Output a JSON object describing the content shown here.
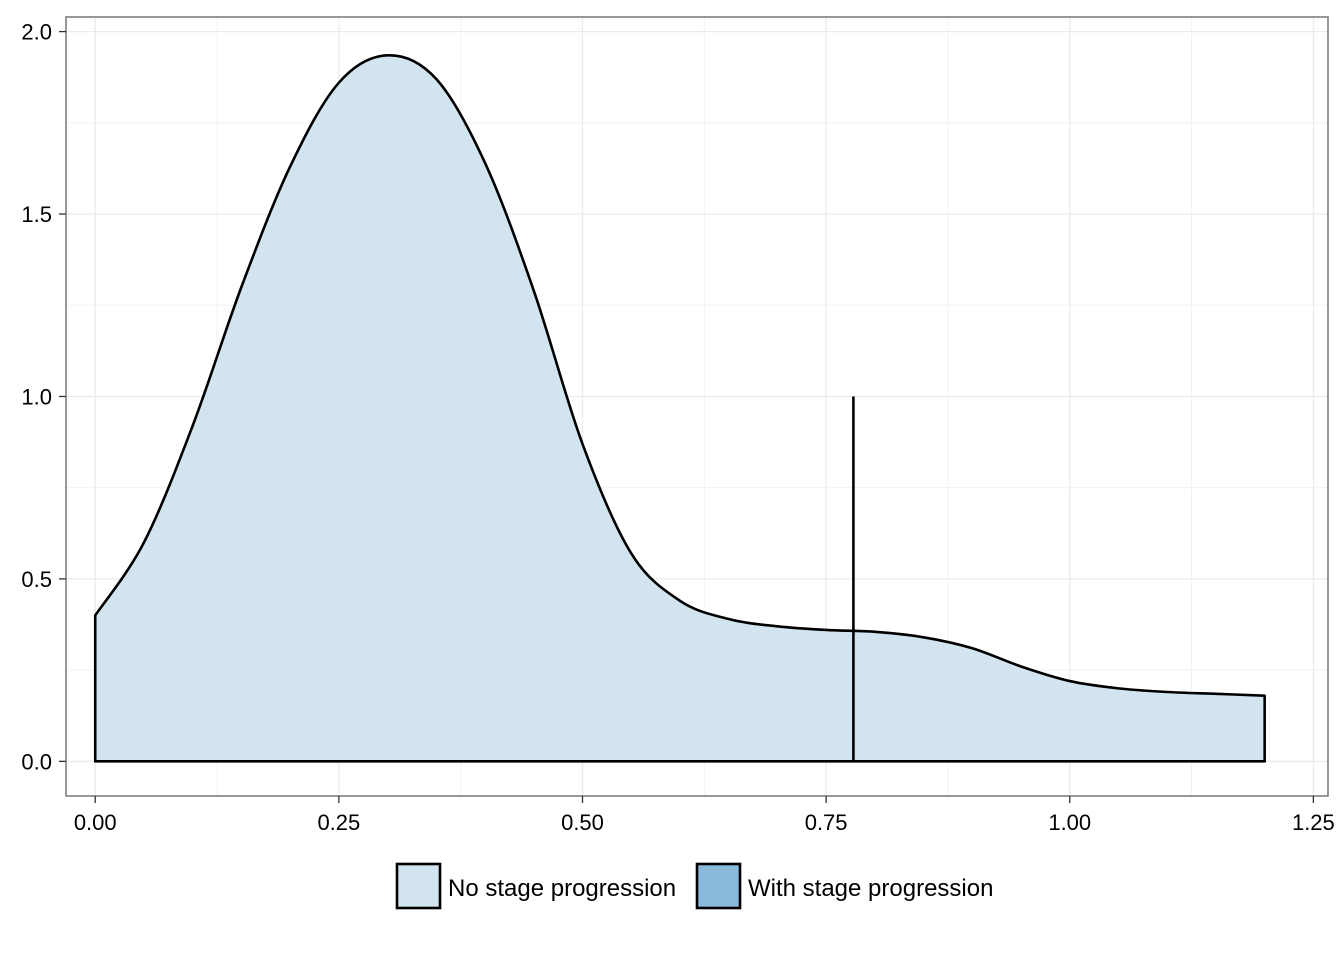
{
  "chart_data": {
    "type": "area",
    "title": "",
    "xlabel": "",
    "ylabel": "",
    "xlim": [
      -0.03,
      1.265
    ],
    "ylim": [
      -0.095,
      2.04
    ],
    "x_ticks": [
      0,
      0.25,
      0.5,
      0.75,
      1.0,
      1.25
    ],
    "x_tick_labels": [
      "0.00",
      "0.25",
      "0.50",
      "0.75",
      "1.00",
      "1.25"
    ],
    "y_ticks": [
      0,
      0.5,
      1.0,
      1.5,
      2.0
    ],
    "y_tick_labels": [
      "0.0",
      "0.5",
      "1.0",
      "1.5",
      "2.0"
    ],
    "grid": true,
    "legend_position": "bottom",
    "series": [
      {
        "name": "No stage progression",
        "color": "#d2e4f0",
        "x": [
          0,
          0.05,
          0.1,
          0.15,
          0.2,
          0.25,
          0.3,
          0.35,
          0.4,
          0.45,
          0.5,
          0.55,
          0.6,
          0.65,
          0.7,
          0.75,
          0.8,
          0.85,
          0.9,
          0.95,
          1.0,
          1.05,
          1.1,
          1.15,
          1.2
        ],
        "y": [
          0.4,
          0.6,
          0.92,
          1.3,
          1.63,
          1.86,
          1.935,
          1.87,
          1.64,
          1.29,
          0.87,
          0.57,
          0.44,
          0.39,
          0.37,
          0.36,
          0.355,
          0.34,
          0.31,
          0.26,
          0.22,
          0.2,
          0.19,
          0.185,
          0.18
        ]
      },
      {
        "name": "With stage progression",
        "color": "#8ab9dc",
        "x": [
          0.778
        ],
        "y": [
          1.0
        ]
      }
    ]
  },
  "legend": {
    "items": [
      {
        "label": "No stage progression",
        "color": "#d2e4f0"
      },
      {
        "label": "With stage progression",
        "color": "#8ab9dc"
      }
    ]
  }
}
